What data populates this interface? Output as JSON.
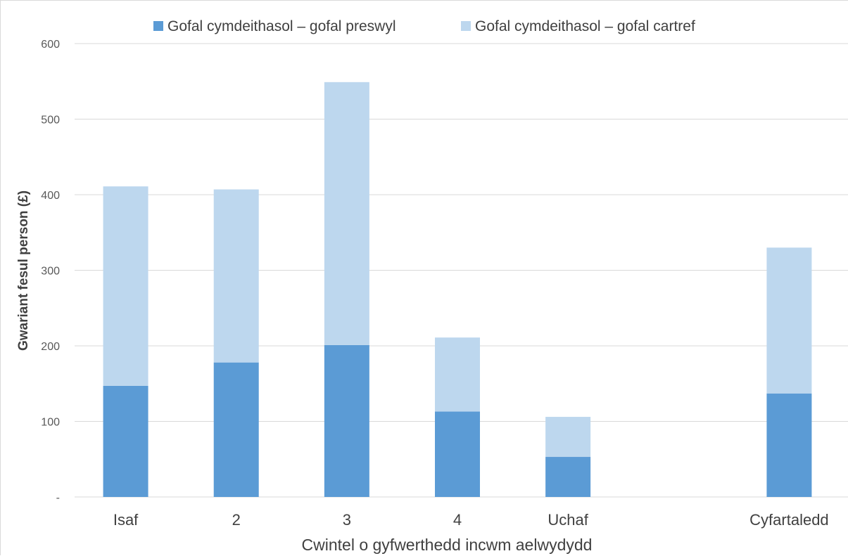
{
  "chart_data": {
    "type": "bar",
    "stacked": true,
    "categories": [
      "Isaf",
      "2",
      "3",
      "4",
      "Uchaf",
      "",
      "Cyfartaledd"
    ],
    "series": [
      {
        "name": "Gofal cymdeithasol – gofal preswyl",
        "color": "#5b9bd5",
        "values": [
          147,
          178,
          201,
          113,
          53,
          null,
          137
        ]
      },
      {
        "name": "Gofal cymdeithasol – gofal cartref",
        "color": "#bdd7ee",
        "values": [
          264,
          229,
          348,
          98,
          53,
          null,
          193
        ]
      }
    ],
    "xlabel": "Cwintel o gyfwerthedd incwm aelwydydd",
    "ylabel": "Gwariant fesul person (£)",
    "ylim": [
      0,
      600
    ],
    "yticks": [
      0,
      100,
      200,
      300,
      400,
      500,
      600
    ],
    "ytick_labels": [
      "-",
      "100",
      "200",
      "300",
      "400",
      "500",
      "600"
    ],
    "grid": true,
    "legend_position": "top"
  }
}
